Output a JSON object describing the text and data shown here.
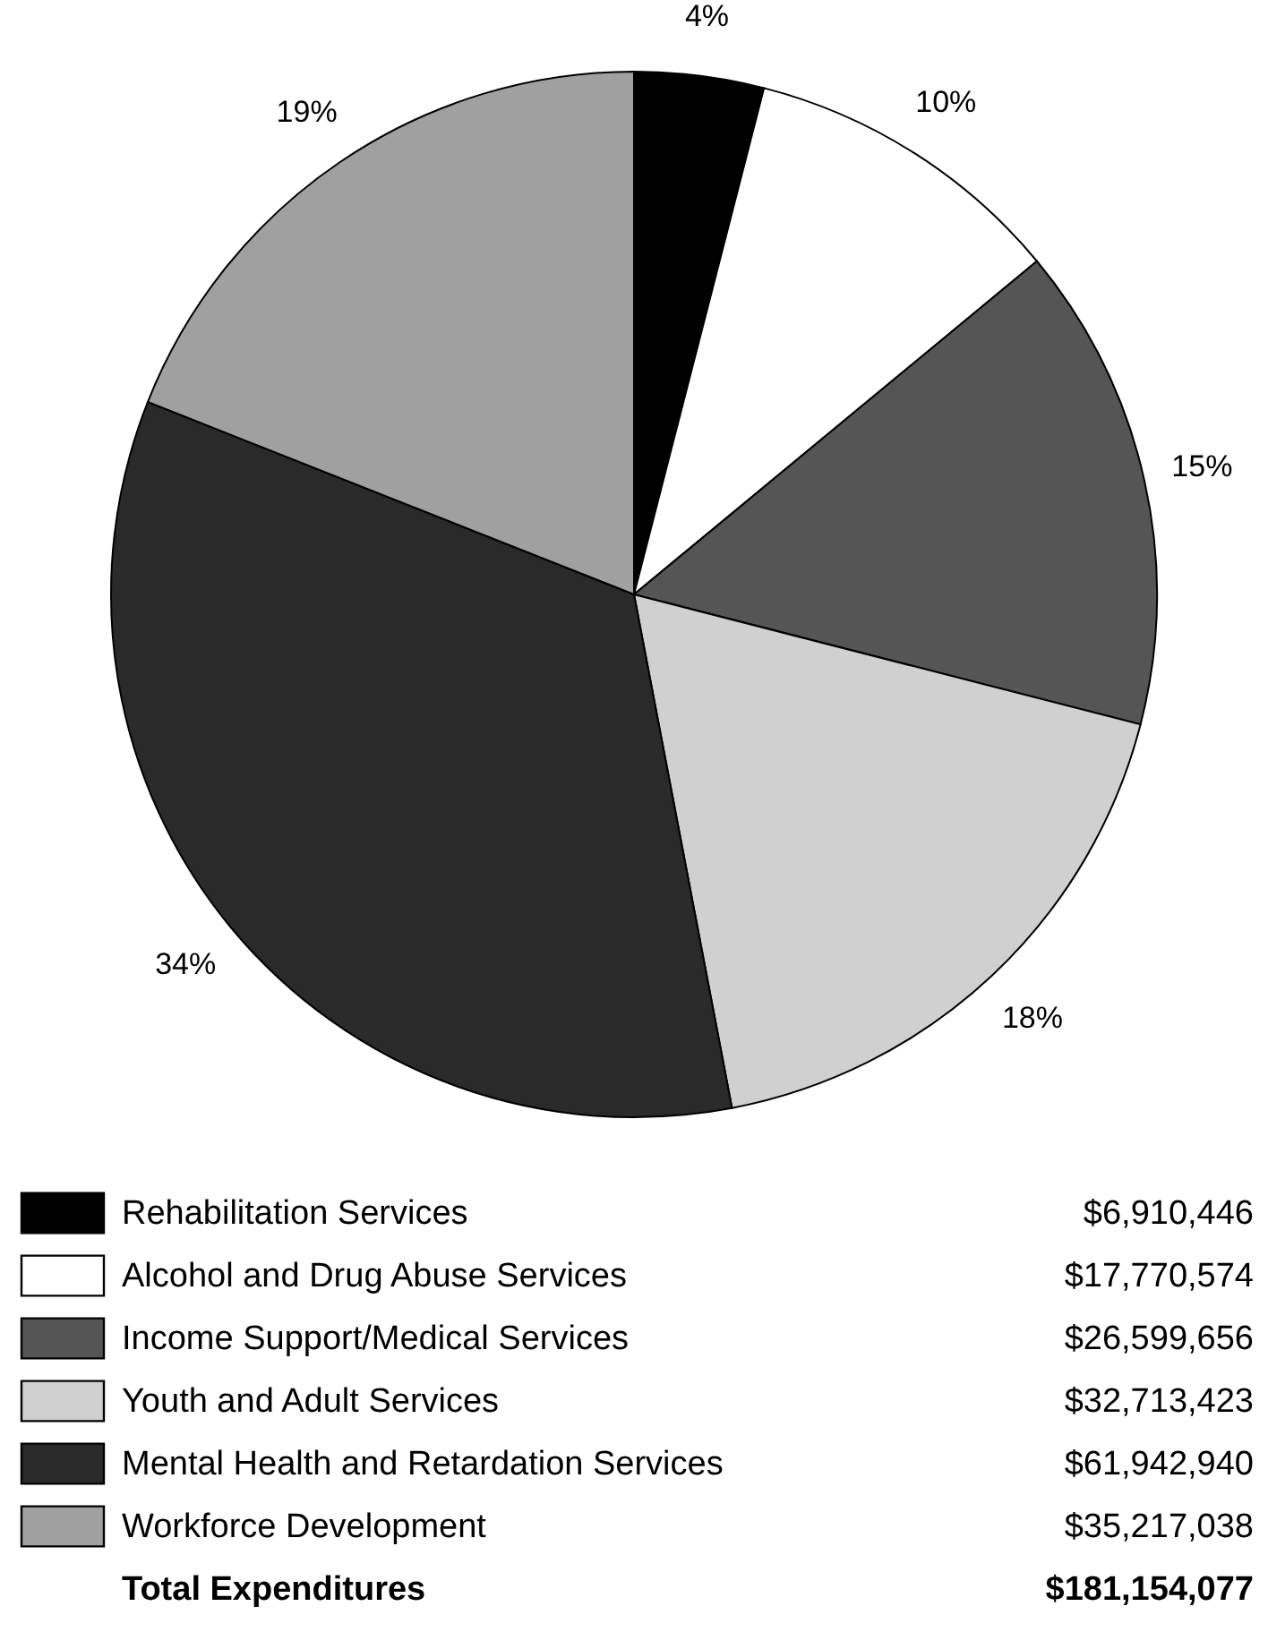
{
  "chart_data": {
    "type": "pie",
    "categories": [
      "Rehabilitation Services",
      "Alcohol and Drug Abuse Services",
      "Income Support/Medical Services",
      "Youth and Adult Services",
      "Mental Health and Retardation Services",
      "Workforce Development"
    ],
    "values": [
      4,
      10,
      15,
      18,
      34,
      19
    ],
    "value_labels": [
      "4%",
      "10%",
      "15%",
      "18%",
      "34%",
      "19%"
    ],
    "colors": [
      "#000000",
      "#ffffff",
      "#555555",
      "#d0d0d0",
      "#2a2a2a",
      "#a0a0a0"
    ],
    "legend": "bottom",
    "annotations": [
      "$6,910,446",
      "$17,770,574",
      "$26,599,656",
      "$32,713,423",
      "$61,942,940",
      "$35,217,038",
      "Total Expenditures",
      "$181,154,077"
    ]
  }
}
